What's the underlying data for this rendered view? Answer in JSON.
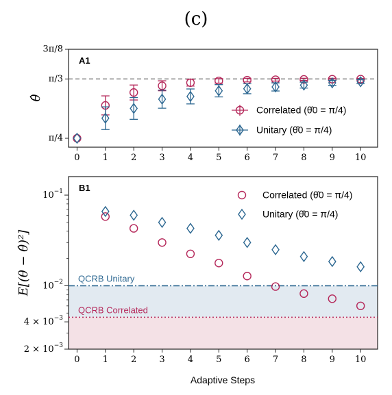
{
  "figure": {
    "label": "(c)",
    "xlabel": "Adaptive Steps"
  },
  "colors": {
    "correlated": "#b5285a",
    "unitary": "#2c6791",
    "dashed_ref": "#7a7a7a",
    "unitary_band": "#e2eaf1",
    "correlated_band": "#f4e1e6"
  },
  "chart_data": [
    {
      "panel": "A1",
      "type": "scatter",
      "ylabel": "θ̂",
      "xlim": [
        -0.3,
        10.6
      ],
      "ylim": [
        0.7461,
        1.1781
      ],
      "x_ticks": [
        0,
        1,
        2,
        3,
        4,
        5,
        6,
        7,
        8,
        9,
        10
      ],
      "y_ticks": [
        {
          "value": 0.7854,
          "label": "π/4"
        },
        {
          "value": 1.0472,
          "label": "π/3"
        },
        {
          "value": 1.1781,
          "label": "3π/8"
        }
      ],
      "reference_line": {
        "value": 1.0472,
        "style": "dashed"
      },
      "legend": {
        "position": "center-right",
        "entries": [
          "Correlated (θ̂0 = π/4)",
          "Unitary (θ̂0 = π/4)"
        ]
      },
      "series": [
        {
          "name": "Correlated (θ̂0 = π/4)",
          "marker": "circle",
          "color_key": "correlated",
          "x": [
            0,
            1,
            2,
            3,
            4,
            5,
            6,
            7,
            8,
            9,
            10
          ],
          "y": [
            0.7854,
            0.9305,
            0.9874,
            1.017,
            1.0307,
            1.0387,
            1.0421,
            1.0439,
            1.0453,
            1.0461,
            1.0466
          ],
          "err": [
            0.0,
            0.042,
            0.033,
            0.022,
            0.015,
            0.01,
            0.008,
            0.006,
            0.005,
            0.004,
            0.003
          ]
        },
        {
          "name": "Unitary (θ̂0 = π/4)",
          "marker": "diamond",
          "color_key": "unitary",
          "x": [
            0,
            1,
            2,
            3,
            4,
            5,
            6,
            7,
            8,
            9,
            10
          ],
          "y": [
            0.7854,
            0.874,
            0.917,
            0.958,
            0.97,
            0.995,
            1.004,
            1.012,
            1.02,
            1.03,
            1.035
          ],
          "err": [
            0.0,
            0.05,
            0.048,
            0.04,
            0.033,
            0.027,
            0.022,
            0.018,
            0.013,
            0.011,
            0.009
          ]
        }
      ]
    },
    {
      "panel": "B1",
      "type": "scatter",
      "ylabel": "E[(θ − θ̂)²]",
      "y_scale": "log",
      "xlim": [
        -0.3,
        10.6
      ],
      "ylim": [
        0.002,
        0.16
      ],
      "x_ticks": [
        0,
        1,
        2,
        3,
        4,
        5,
        6,
        7,
        8,
        9,
        10
      ],
      "y_ticks": [
        {
          "value": 0.1,
          "label": "10^-1"
        },
        {
          "value": 0.01,
          "label": "10^-2"
        },
        {
          "value": 0.004,
          "label": "4 × 10^-3"
        },
        {
          "value": 0.002,
          "label": "2 × 10^-3"
        }
      ],
      "legend": {
        "position": "top-right",
        "entries": [
          "Correlated (θ̂0 = π/4)",
          "Unitary (θ̂0 = π/4)"
        ]
      },
      "reference_lines": [
        {
          "label": "QCRB Unitary",
          "value": 0.01,
          "style": "dash-dot",
          "color_key": "unitary"
        },
        {
          "label": "QCRB Correlated",
          "value": 0.0045,
          "style": "dotted",
          "color_key": "correlated"
        }
      ],
      "series": [
        {
          "name": "Correlated (θ̂0 = π/4)",
          "marker": "circle",
          "color_key": "correlated",
          "x": [
            1,
            2,
            3,
            4,
            5,
            6,
            7,
            8,
            9,
            10
          ],
          "y": [
            0.058,
            0.043,
            0.03,
            0.0225,
            0.0178,
            0.0128,
            0.0098,
            0.0082,
            0.0072,
            0.006
          ]
        },
        {
          "name": "Unitary (θ̂0 = π/4)",
          "marker": "diamond",
          "color_key": "unitary",
          "x": [
            1,
            2,
            3,
            4,
            5,
            6,
            7,
            8,
            9,
            10
          ],
          "y": [
            0.066,
            0.06,
            0.05,
            0.043,
            0.036,
            0.03,
            0.025,
            0.021,
            0.0185,
            0.0162
          ]
        }
      ]
    }
  ]
}
